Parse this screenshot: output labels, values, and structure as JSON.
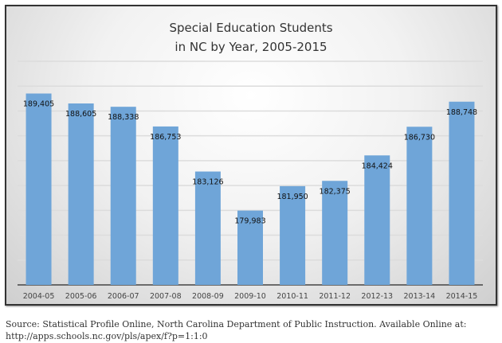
{
  "chart_data": {
    "type": "bar",
    "title": [
      "Special Education Students",
      "in NC by Year, 2005-2015"
    ],
    "categories": [
      "2004-05",
      "2005-06",
      "2006-07",
      "2007-08",
      "2008-09",
      "2009-10",
      "2010-11",
      "2011-12",
      "2012-13",
      "2013-14",
      "2014-15"
    ],
    "values": [
      189405,
      188605,
      188338,
      186753,
      183126,
      179983,
      181950,
      182375,
      184424,
      186730,
      188748
    ],
    "data_labels": [
      "189,405",
      "188,605",
      "188,338",
      "186,753",
      "183,126",
      "179,983",
      "181,950",
      "182,375",
      "184,424",
      "186,730",
      "188,748"
    ],
    "xlabel": "",
    "ylabel": "",
    "ylim": [
      174000,
      192000
    ],
    "grid_step": 2000,
    "grid": true,
    "bar_color": "#6fa5d8"
  },
  "source": {
    "line1": "Source: Statistical Profile Online, North Carolina Department of Public Instruction. Available Online at:",
    "line2": "http://apps.schools.nc.gov/pls/apex/f?p=1:1:0"
  }
}
